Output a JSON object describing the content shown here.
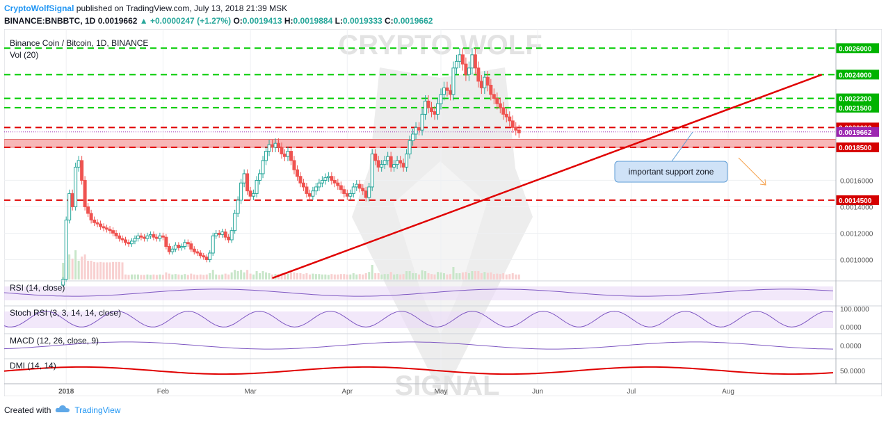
{
  "header": {
    "author": "CryptoWolfSignal",
    "published_text": "published on TradingView.com, July 13, 2018 21:39 MSK",
    "symbol": "BINANCE:BNBBTC, 1D",
    "last": "0.0019662",
    "change": "+0.0000247 (+1.27%)",
    "o_label": "O:",
    "o_value": "0.0019413",
    "h_label": "H:",
    "h_value": "0.0019884",
    "l_label": "L:",
    "l_value": "0.0019333",
    "c_label": "C:",
    "c_value": "0.0019662"
  },
  "watermark": {
    "top": "CRYPTO WOLF",
    "bottom": "SIGNAL"
  },
  "footer": {
    "created_with": "Created with",
    "brand": "TradingView"
  },
  "colors": {
    "green_level": "#00cc00",
    "red_level": "#e00000",
    "trendline": "#e00000",
    "support_zone": "#f7b7b7",
    "bull": "#26a69a",
    "bear": "#ef5350",
    "rsi_band": "#e9d9f7",
    "macd_hist": "#c2185b"
  },
  "chart_data": {
    "type": "candlestick",
    "title": "Binance Coin / Bitcoin, 1D, BINANCE",
    "volume_label": "Vol (20)",
    "x_ticks": [
      "2018",
      "Feb",
      "Mar",
      "Apr",
      "May",
      "Jun",
      "Jul",
      "Aug"
    ],
    "y_ticks": [
      "0.0010000",
      "0.0012000",
      "0.0014000",
      "0.0016000"
    ],
    "ylim": [
      0.00085,
      0.00267
    ],
    "price_levels": [
      {
        "value": 0.0026,
        "label": "0.0026000",
        "color": "green"
      },
      {
        "value": 0.0024,
        "label": "0.0024000",
        "color": "green"
      },
      {
        "value": 0.00222,
        "label": "0.0022200",
        "color": "green"
      },
      {
        "value": 0.00215,
        "label": "0.0021500",
        "color": "green"
      },
      {
        "value": 0.002,
        "label": "0.0020000",
        "color": "red"
      },
      {
        "value": 0.0019662,
        "label": "0.0019662",
        "color": "current"
      },
      {
        "value": 0.00185,
        "label": "0.0018500",
        "color": "red"
      },
      {
        "value": 0.00145,
        "label": "0.0014500",
        "color": "red"
      }
    ],
    "support_zone": {
      "from": 0.00185,
      "to": 0.00191
    },
    "annotation": "important support zone",
    "trendline": [
      [
        "2018-03-08",
        0.00086
      ],
      [
        "2018-08-31",
        0.0024
      ]
    ],
    "closes": [
      0.00085,
      0.0013,
      0.0015,
      0.0014,
      0.0017,
      0.00175,
      0.0016,
      0.0014,
      0.00135,
      0.0013,
      0.00128,
      0.00127,
      0.00125,
      0.00124,
      0.00123,
      0.00122,
      0.0012,
      0.00118,
      0.00116,
      0.00115,
      0.00113,
      0.00112,
      0.00114,
      0.00116,
      0.00118,
      0.00117,
      0.00116,
      0.00118,
      0.00119,
      0.00117,
      0.00116,
      0.00118,
      0.00117,
      0.0011,
      0.00106,
      0.00108,
      0.00111,
      0.00109,
      0.0011,
      0.00113,
      0.00112,
      0.00108,
      0.00106,
      0.00105,
      0.00103,
      0.00102,
      0.001,
      0.00105,
      0.00118,
      0.0012,
      0.00119,
      0.00121,
      0.00117,
      0.00115,
      0.00122,
      0.00135,
      0.00145,
      0.00158,
      0.00165,
      0.00152,
      0.00148,
      0.0015,
      0.0016,
      0.00165,
      0.00175,
      0.00182,
      0.00187,
      0.00185,
      0.00188,
      0.00185,
      0.0018,
      0.00178,
      0.00182,
      0.00175,
      0.00168,
      0.00163,
      0.00158,
      0.00155,
      0.0015,
      0.00148,
      0.00152,
      0.00155,
      0.00158,
      0.0016,
      0.00162,
      0.00163,
      0.0016,
      0.00158,
      0.00156,
      0.00153,
      0.0015,
      0.00148,
      0.0015,
      0.00155,
      0.00157,
      0.00154,
      0.00152,
      0.00147,
      0.00155,
      0.0018,
      0.00175,
      0.0017,
      0.00172,
      0.00175,
      0.00178,
      0.0017,
      0.00172,
      0.00175,
      0.00173,
      0.0017,
      0.0018,
      0.0019,
      0.00195,
      0.002,
      0.00198,
      0.0021,
      0.0022,
      0.00215,
      0.00212,
      0.0021,
      0.00218,
      0.00225,
      0.0023,
      0.00228,
      0.00225,
      0.00245,
      0.0025,
      0.00255,
      0.00248,
      0.0024,
      0.00245,
      0.00255,
      0.00245,
      0.00235,
      0.0023,
      0.00238,
      0.00232,
      0.00225,
      0.00222,
      0.00218,
      0.00215,
      0.0021,
      0.00208,
      0.00205,
      0.002,
      0.00198,
      0.00196
    ],
    "panels": [
      {
        "name": "RSI",
        "label": "RSI (14, close)"
      },
      {
        "name": "StochRSI",
        "label": "Stoch RSI (3, 3, 14, 14, close)",
        "ticks": [
          "100.0000",
          "0.0000"
        ]
      },
      {
        "name": "MACD",
        "label": "MACD (12, 26, close, 9)",
        "ticks": [
          "0.0000"
        ]
      },
      {
        "name": "DMI",
        "label": "DMI (14, 14)",
        "ticks": [
          "50.0000"
        ]
      }
    ]
  }
}
